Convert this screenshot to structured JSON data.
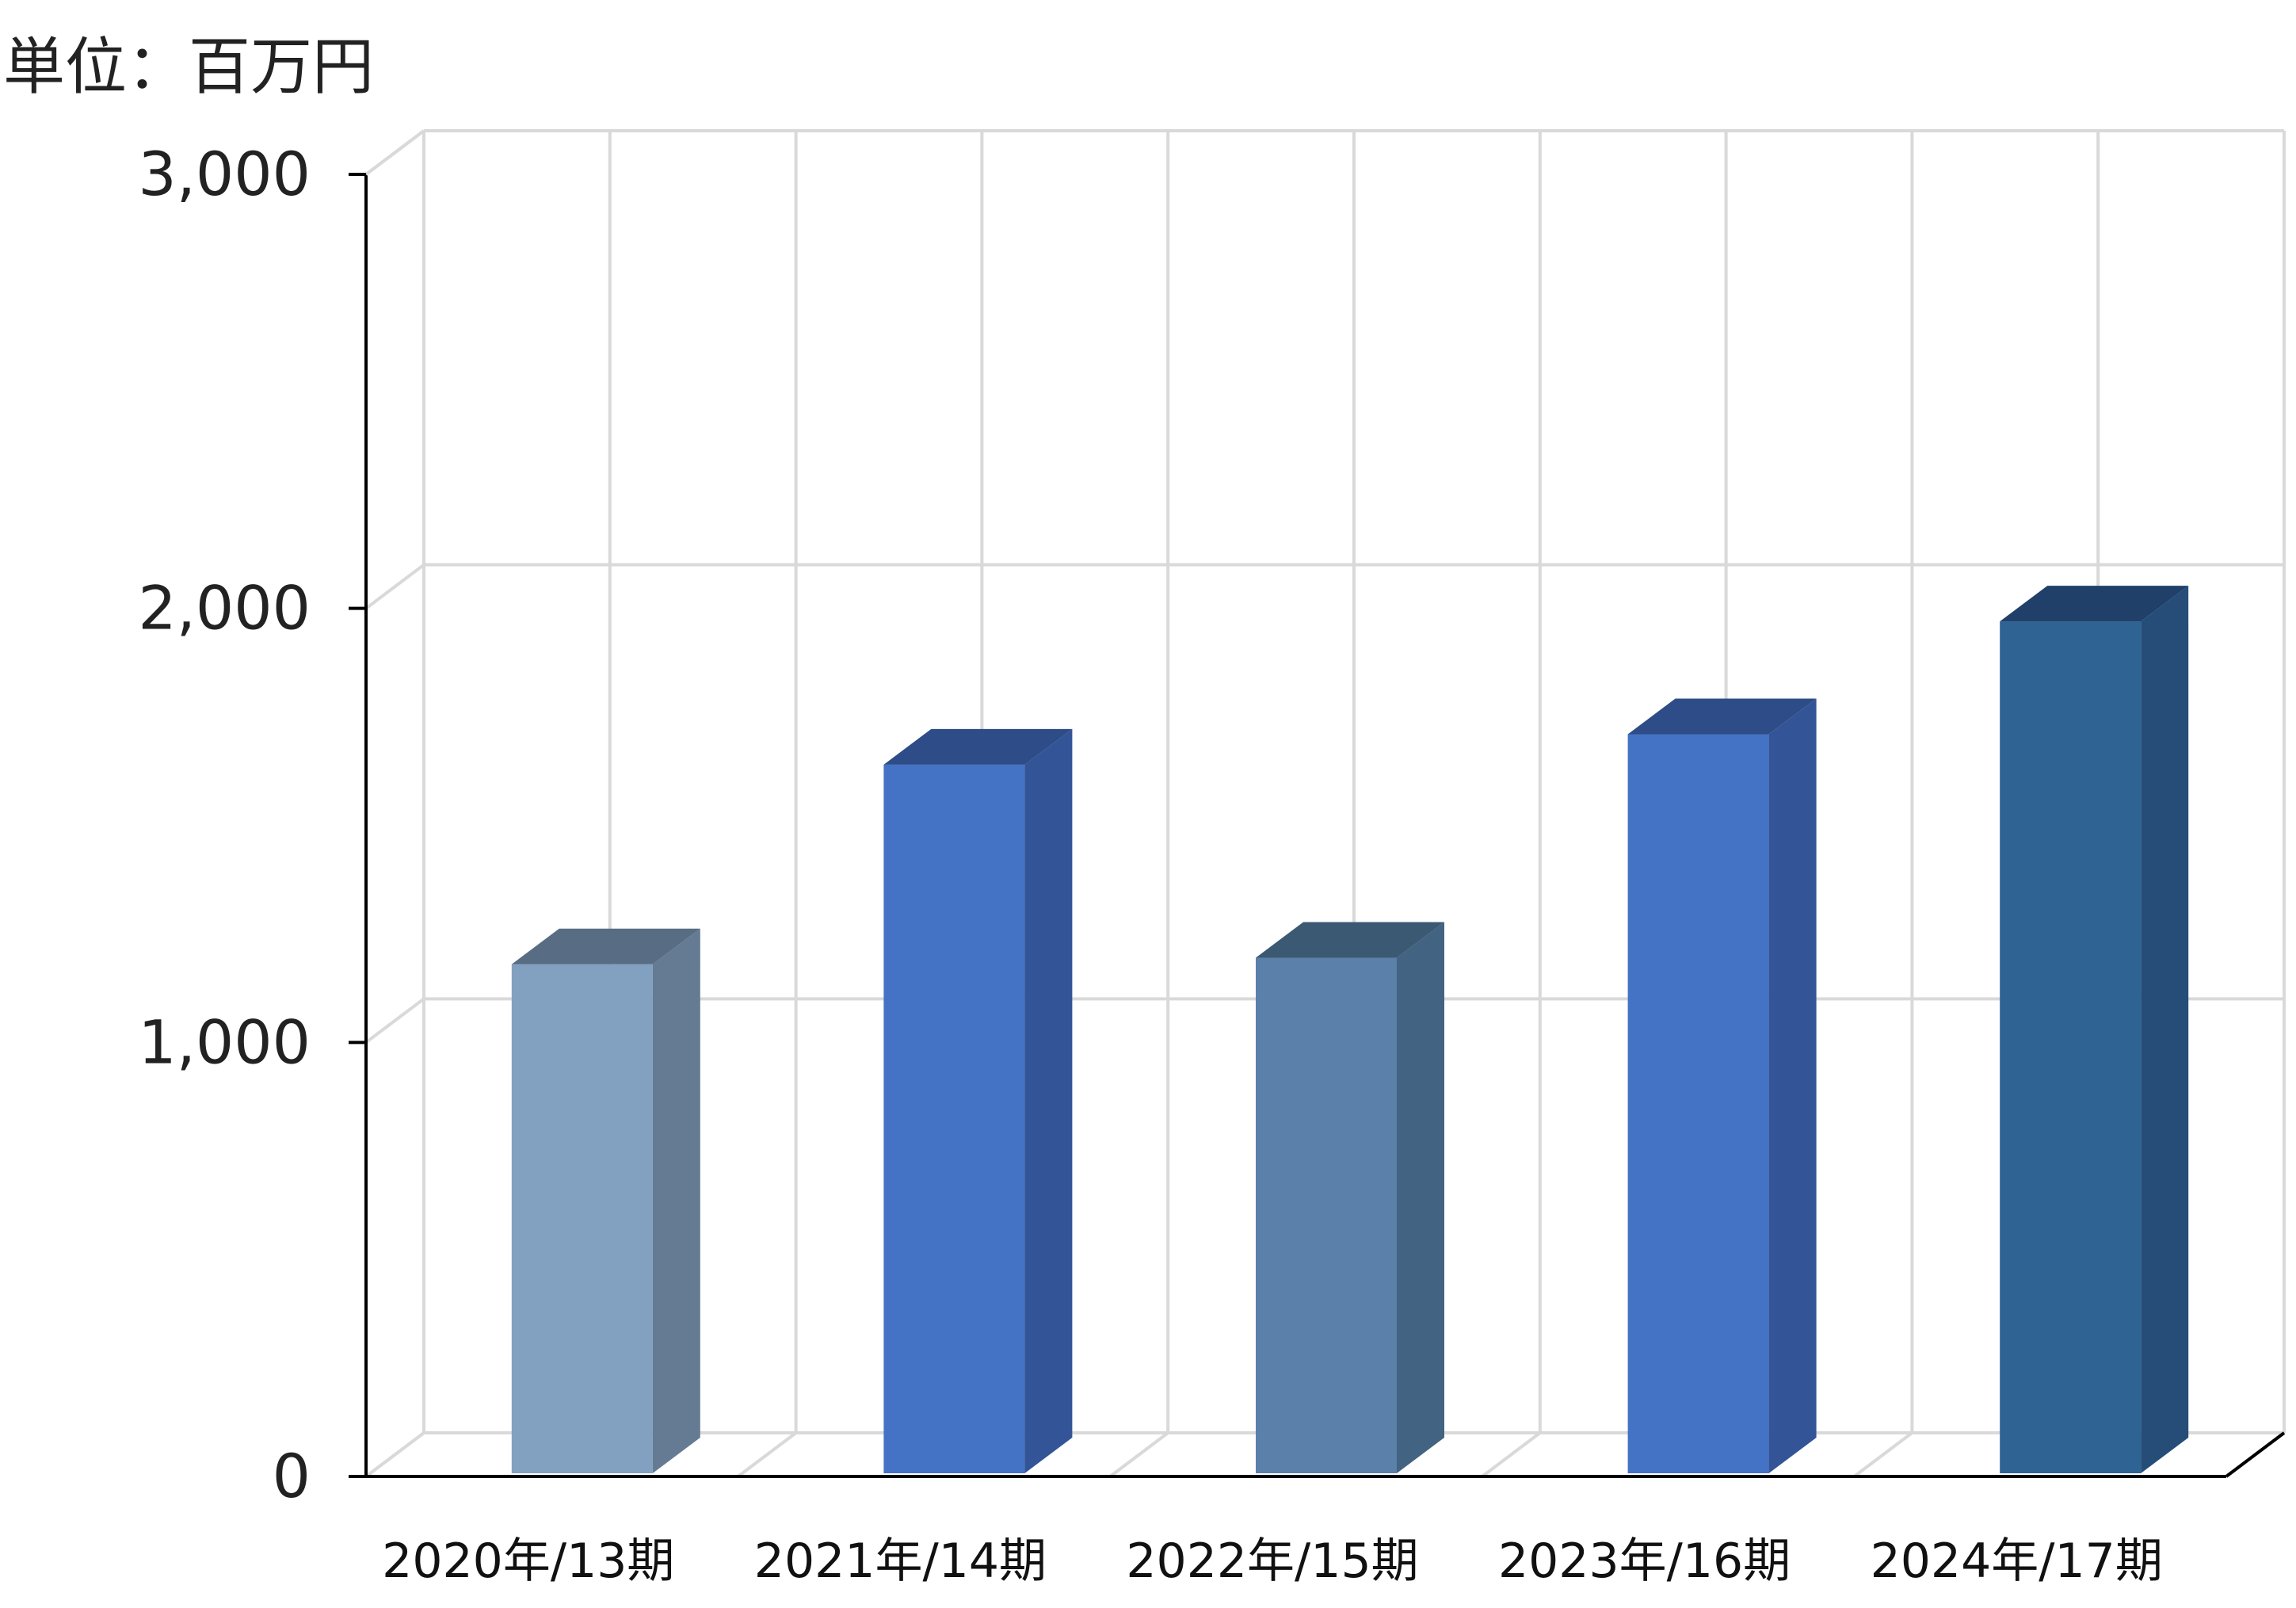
{
  "unit_label": "単位：百万円",
  "chart_data": {
    "type": "bar",
    "style": "3d-column",
    "categories": [
      "2020年/13期",
      "2021年/14期",
      "2022年/15期",
      "2023年/16期",
      "2024年/17期"
    ],
    "values": [
      1180,
      1640,
      1195,
      1710,
      1970
    ],
    "ylim": [
      0,
      3000
    ],
    "yticks": [
      0,
      1000,
      2000,
      3000
    ],
    "ytick_labels": [
      "0",
      "1,000",
      "2,000",
      "3,000"
    ],
    "grid": true,
    "legend": "none",
    "bar_colors": [
      {
        "front": "#82a0c0",
        "side": "#657b93",
        "top": "#586d84"
      },
      {
        "front": "#4472c4",
        "side": "#335597",
        "top": "#2e4c87"
      },
      {
        "front": "#5b80a9",
        "side": "#426381",
        "top": "#3c5973"
      },
      {
        "front": "#4472c4",
        "side": "#335597",
        "top": "#2e4c87"
      },
      {
        "front": "#2e6393",
        "side": "#254d78",
        "top": "#20406a"
      }
    ],
    "colors": {
      "grid": "#d9d9d9",
      "axis": "#000000"
    }
  }
}
